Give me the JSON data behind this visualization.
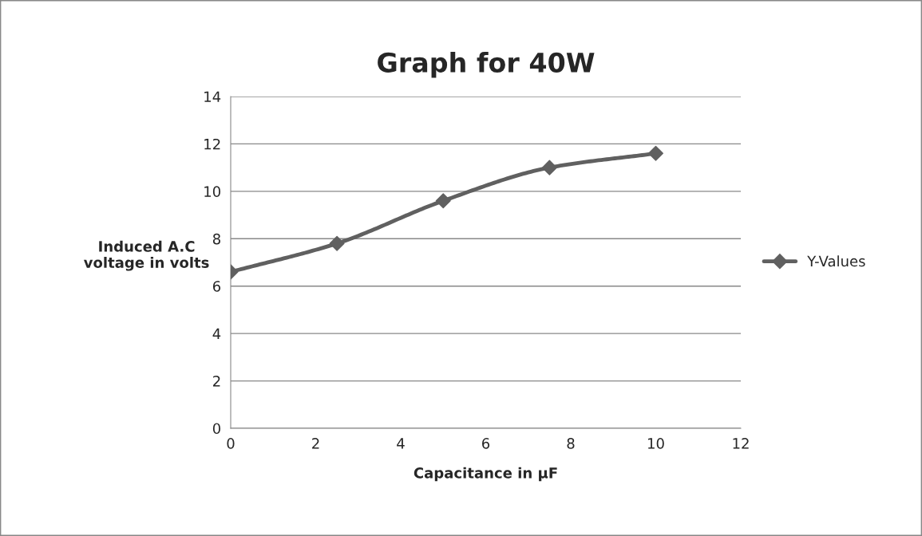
{
  "chart_data": {
    "type": "line",
    "title": "Graph for 40W",
    "xlabel": "Capacitance in µF",
    "ylabel": "Induced A.C\nvoltage in volts",
    "x": [
      0,
      2.5,
      5,
      7.5,
      10
    ],
    "series": [
      {
        "name": "Y-Values",
        "color": "#606060",
        "values": [
          6.6,
          7.8,
          9.6,
          11.0,
          11.6
        ]
      }
    ],
    "xlim": [
      0,
      12
    ],
    "xticks": [
      0,
      2,
      4,
      6,
      8,
      10,
      12
    ],
    "ylim": [
      0,
      14
    ],
    "yticks": [
      0,
      2,
      4,
      6,
      8,
      10,
      12,
      14
    ],
    "grid": "y",
    "legend": "right",
    "marker": "diamond",
    "line_style": "solid"
  }
}
